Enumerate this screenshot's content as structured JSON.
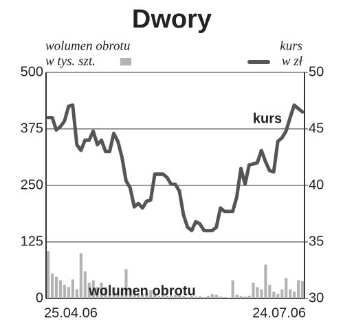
{
  "chart_data": {
    "type": "bar-line",
    "title": "Dwory",
    "categories": [
      "25.04.06",
      null,
      null,
      null,
      null,
      null,
      null,
      null,
      null,
      null,
      null,
      null,
      null,
      null,
      null,
      null,
      null,
      null,
      null,
      null,
      null,
      null,
      null,
      null,
      null,
      null,
      null,
      null,
      null,
      null,
      null,
      null,
      null,
      null,
      null,
      null,
      null,
      null,
      null,
      null,
      null,
      null,
      null,
      null,
      null,
      null,
      null,
      null,
      null,
      null,
      null,
      null,
      null,
      null,
      null,
      null,
      null,
      null,
      null,
      null,
      null,
      null,
      "24.07.06"
    ],
    "series": [
      {
        "name": "wolumen obrotu",
        "unit": "w tys. szt.",
        "type": "bar",
        "axis": "y",
        "color": "#b3b3b3",
        "values": [
          105,
          55,
          48,
          40,
          30,
          25,
          42,
          20,
          100,
          60,
          35,
          40,
          25,
          35,
          25,
          10,
          25,
          15,
          20,
          65,
          20,
          15,
          10,
          10,
          12,
          18,
          10,
          5,
          8,
          6,
          5,
          8,
          10,
          5,
          3,
          6,
          4,
          5,
          3,
          6,
          10,
          8,
          4,
          3,
          2,
          40,
          8,
          5,
          4,
          6,
          35,
          25,
          20,
          75,
          30,
          15,
          10,
          20,
          45,
          20,
          15,
          40,
          38
        ]
      },
      {
        "name": "kurs",
        "unit": "w zł",
        "type": "line",
        "axis": "y2",
        "color": "#555555",
        "values": [
          46.0,
          46.0,
          44.9,
          45.2,
          45.7,
          47.0,
          47.1,
          43.6,
          43.1,
          44.0,
          44.0,
          44.8,
          43.6,
          44.0,
          43.0,
          43.0,
          44.6,
          43.9,
          42.5,
          40.4,
          39.8,
          38.1,
          38.4,
          38.0,
          38.6,
          38.7,
          41.0,
          41.0,
          41.0,
          40.7,
          40.1,
          40.1,
          39.5,
          37.4,
          36.3,
          36.0,
          36.8,
          36.6,
          36.0,
          36.0,
          36.0,
          36.3,
          38.0,
          37.7,
          37.7,
          37.7,
          39.0,
          41.5,
          40.1,
          41.8,
          41.9,
          42.0,
          43.1,
          42.1,
          41.3,
          41.2,
          43.9,
          44.2,
          44.8,
          46.0,
          47.1,
          46.8,
          46.5
        ]
      }
    ],
    "annotations": [
      "kurs",
      "wolumen obrotu"
    ],
    "ylim": [
      0,
      500
    ],
    "yticks": [
      0,
      125,
      250,
      375,
      500
    ],
    "y2lim": [
      30,
      50
    ],
    "y2ticks": [
      30,
      35,
      40,
      45,
      50
    ],
    "grid": true
  }
}
